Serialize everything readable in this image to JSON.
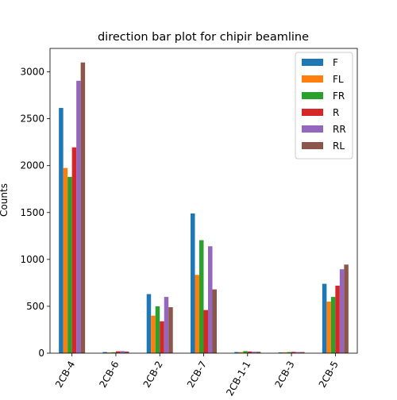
{
  "chart_data": {
    "type": "bar",
    "title": "direction bar plot for chipir beamline",
    "xlabel": "",
    "ylabel": "Counts",
    "ylim": [
      0,
      3250
    ],
    "yticks": [
      0,
      500,
      1000,
      1500,
      2000,
      2500,
      3000
    ],
    "categories": [
      "2CB-4",
      "2CB-6",
      "2CB-2",
      "2CB-7",
      "2CB-1-1",
      "2CB-3",
      "2CB-5"
    ],
    "legend_position": "top-right",
    "grid": false,
    "series": [
      {
        "name": "F",
        "color": "#1f77b4",
        "values": [
          2615,
          12,
          630,
          1490,
          12,
          8,
          740
        ]
      },
      {
        "name": "FL",
        "color": "#ff7f0e",
        "values": [
          1975,
          8,
          400,
          835,
          12,
          10,
          550
        ]
      },
      {
        "name": "FR",
        "color": "#2ca02c",
        "values": [
          1880,
          10,
          500,
          1205,
          22,
          12,
          600
        ]
      },
      {
        "name": "R",
        "color": "#d62728",
        "values": [
          2195,
          20,
          340,
          460,
          18,
          14,
          720
        ]
      },
      {
        "name": "RR",
        "color": "#9467bd",
        "values": [
          2905,
          22,
          600,
          1140,
          15,
          12,
          895
        ]
      },
      {
        "name": "RL",
        "color": "#8c564b",
        "values": [
          3100,
          18,
          490,
          680,
          15,
          12,
          945
        ]
      }
    ]
  }
}
